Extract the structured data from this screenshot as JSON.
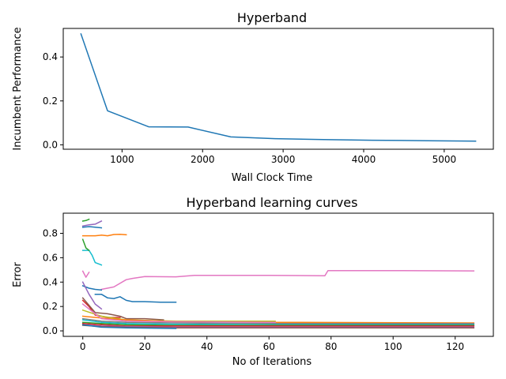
{
  "chart_data": [
    {
      "type": "line",
      "title": "Hyperband",
      "xlabel": "Wall Clock Time",
      "ylabel": "Incumbent Performance",
      "xlim": [
        270,
        5610
      ],
      "ylim": [
        -0.02,
        0.53
      ],
      "xticks": [
        1000,
        2000,
        3000,
        4000,
        5000
      ],
      "yticks": [
        0.0,
        0.2,
        0.4
      ],
      "ytick_labels": [
        "0.0",
        "0.2",
        "0.4"
      ],
      "grid": false,
      "series": [
        {
          "color": "#1f77b4",
          "x": [
            490,
            820,
            1330,
            1820,
            2350,
            2900,
            3500,
            4100,
            4800,
            5390
          ],
          "y": [
            0.505,
            0.155,
            0.082,
            0.081,
            0.036,
            0.028,
            0.024,
            0.021,
            0.019,
            0.017
          ]
        }
      ]
    },
    {
      "type": "line",
      "title": "Hyperband learning curves",
      "xlabel": "No of Iterations",
      "ylabel": "Error",
      "xlim": [
        -6.3,
        132.3
      ],
      "ylim": [
        -0.045,
        0.965
      ],
      "xticks": [
        0,
        20,
        40,
        60,
        80,
        100,
        120
      ],
      "yticks": [
        0.0,
        0.2,
        0.4,
        0.6,
        0.8
      ],
      "ytick_labels": [
        "0.0",
        "0.2",
        "0.4",
        "0.6",
        "0.8"
      ],
      "grid": false,
      "series": [
        {
          "color": "#e377c2",
          "x": [
            6,
            10,
            14,
            16,
            20,
            30,
            36,
            40,
            60,
            78,
            79,
            100,
            126
          ],
          "y": [
            0.34,
            0.36,
            0.42,
            0.43,
            0.445,
            0.443,
            0.455,
            0.455,
            0.455,
            0.452,
            0.494,
            0.494,
            0.492
          ]
        },
        {
          "color": "#1f77b4",
          "x": [
            4,
            6,
            8,
            10,
            12,
            14,
            16,
            20,
            25,
            30
          ],
          "y": [
            0.3,
            0.3,
            0.27,
            0.265,
            0.28,
            0.25,
            0.24,
            0.24,
            0.235,
            0.235
          ]
        },
        {
          "color": "#ff7f0e",
          "x": [
            0,
            4,
            6,
            8,
            10,
            12,
            14
          ],
          "y": [
            0.78,
            0.78,
            0.785,
            0.78,
            0.79,
            0.792,
            0.788
          ]
        },
        {
          "color": "#2ca02c",
          "x": [
            0,
            1,
            2
          ],
          "y": [
            0.9,
            0.905,
            0.915
          ]
        },
        {
          "color": "#9467bd",
          "x": [
            0,
            2,
            4,
            6
          ],
          "y": [
            0.86,
            0.87,
            0.875,
            0.9
          ]
        },
        {
          "color": "#1f77b4",
          "x": [
            0,
            2,
            4,
            6
          ],
          "y": [
            0.85,
            0.855,
            0.85,
            0.845
          ]
        },
        {
          "color": "#17becf",
          "x": [
            0,
            2,
            3,
            4,
            6
          ],
          "y": [
            0.66,
            0.66,
            0.62,
            0.56,
            0.54
          ]
        },
        {
          "color": "#2ca02c",
          "x": [
            0,
            1,
            2
          ],
          "y": [
            0.75,
            0.68,
            0.66
          ]
        },
        {
          "color": "#e377c2",
          "x": [
            0,
            1,
            2
          ],
          "y": [
            0.49,
            0.44,
            0.48
          ]
        },
        {
          "color": "#1f77b4",
          "x": [
            0,
            2,
            4,
            6
          ],
          "y": [
            0.37,
            0.35,
            0.34,
            0.335
          ]
        },
        {
          "color": "#9467bd",
          "x": [
            0,
            2,
            4,
            6
          ],
          "y": [
            0.4,
            0.3,
            0.22,
            0.18
          ]
        },
        {
          "color": "#d62728",
          "x": [
            0,
            2,
            4,
            6,
            8,
            12
          ],
          "y": [
            0.25,
            0.2,
            0.13,
            0.12,
            0.11,
            0.11
          ]
        },
        {
          "color": "#8c564b",
          "x": [
            0,
            4,
            8,
            12,
            14,
            20,
            26
          ],
          "y": [
            0.27,
            0.15,
            0.14,
            0.12,
            0.1,
            0.1,
            0.09
          ]
        },
        {
          "color": "#bcbd22",
          "x": [
            0,
            6,
            14,
            30,
            62
          ],
          "y": [
            0.17,
            0.12,
            0.09,
            0.08,
            0.08
          ]
        },
        {
          "color": "#ff7f0e",
          "x": [
            0,
            8,
            14,
            30,
            62,
            126
          ],
          "y": [
            0.12,
            0.1,
            0.09,
            0.075,
            0.07,
            0.065
          ]
        },
        {
          "color": "#7f7f7f",
          "x": [
            0,
            6,
            14,
            30,
            62,
            126
          ],
          "y": [
            0.1,
            0.08,
            0.07,
            0.065,
            0.06,
            0.06
          ]
        },
        {
          "color": "#17becf",
          "x": [
            0,
            6,
            14,
            30,
            62,
            126
          ],
          "y": [
            0.09,
            0.07,
            0.06,
            0.055,
            0.05,
            0.05
          ]
        },
        {
          "color": "#2ca02c",
          "x": [
            0,
            6,
            14,
            30,
            62,
            126
          ],
          "y": [
            0.07,
            0.06,
            0.05,
            0.045,
            0.045,
            0.045
          ]
        },
        {
          "color": "#d62728",
          "x": [
            0,
            6,
            14,
            30,
            62,
            126
          ],
          "y": [
            0.06,
            0.05,
            0.04,
            0.04,
            0.04,
            0.04
          ]
        },
        {
          "color": "#9467bd",
          "x": [
            0,
            6,
            14,
            30,
            62,
            126
          ],
          "y": [
            0.05,
            0.04,
            0.035,
            0.03,
            0.03,
            0.03
          ]
        },
        {
          "color": "#8c564b",
          "x": [
            0,
            6,
            14,
            30,
            62,
            126
          ],
          "y": [
            0.045,
            0.035,
            0.03,
            0.025,
            0.025,
            0.025
          ]
        },
        {
          "color": "#e377c2",
          "x": [
            0,
            6,
            14,
            30,
            62
          ],
          "y": [
            0.22,
            0.1,
            0.08,
            0.075,
            0.07
          ]
        },
        {
          "color": "#1f77b4",
          "x": [
            0,
            6,
            14,
            30
          ],
          "y": [
            0.05,
            0.03,
            0.025,
            0.02
          ]
        }
      ]
    }
  ]
}
